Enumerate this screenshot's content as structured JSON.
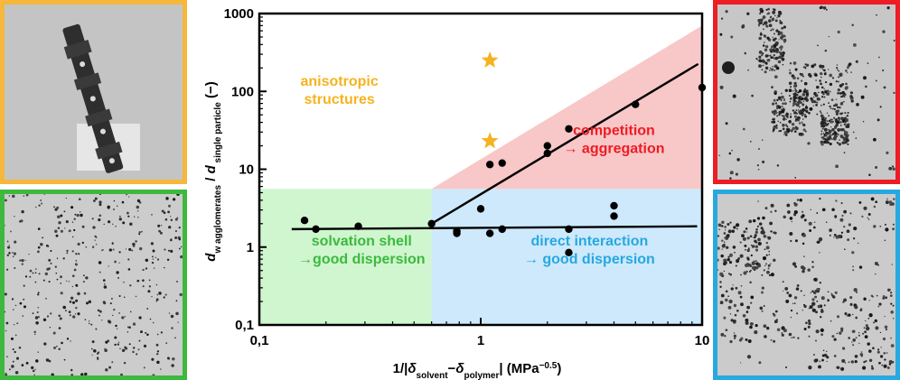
{
  "colors": {
    "region_green": "#CFF6CF",
    "region_blue": "#CDE9FB",
    "region_red": "#F8C7C8",
    "text_orange": "#F5B31E",
    "text_red": "#EE1C24",
    "text_green": "#3DB93D",
    "text_blue": "#27A8E0",
    "frame_orange": "#F5B73C",
    "frame_green": "#3DB93D",
    "frame_red": "#EE1C24",
    "frame_blue": "#27A8E0"
  },
  "photos": [
    {
      "name": "photo-anisotropic",
      "frame": "orange"
    },
    {
      "name": "photo-solvation-shell",
      "frame": "green"
    },
    {
      "name": "photo-aggregation",
      "frame": "red"
    },
    {
      "name": "photo-direct-interaction",
      "frame": "blue"
    }
  ],
  "chart_data": {
    "type": "scatter",
    "x_scale": "log",
    "y_scale": "log",
    "xlim": [
      0.1,
      10
    ],
    "ylim": [
      0.1,
      1000
    ],
    "x_ticks": [
      0.1,
      1,
      10
    ],
    "x_tick_labels": [
      "0,1",
      "1",
      "10"
    ],
    "y_ticks": [
      0.1,
      1,
      10,
      100,
      1000
    ],
    "y_tick_labels": [
      "0,1",
      "1",
      "10",
      "100",
      "1000"
    ],
    "xlabel_parts": [
      "1/|",
      "δ",
      "solvent",
      "−",
      "δ",
      "polymer",
      "|  (MPa",
      "−0.5",
      ")"
    ],
    "ylabel_parts": [
      "d",
      "w agglomerates",
      " / ",
      "d",
      " single particle",
      "  (−)"
    ],
    "series": [
      {
        "name": "agglomerates",
        "marker": "circle",
        "x": [
          0.16,
          0.18,
          0.28,
          0.6,
          0.78,
          0.78,
          1.0,
          1.1,
          1.1,
          1.25,
          1.25,
          2.0,
          2.0,
          2.5,
          2.5,
          2.5,
          4.0,
          4.0,
          5.0,
          10.0
        ],
        "y": [
          2.2,
          1.7,
          1.85,
          2.0,
          1.6,
          1.5,
          3.1,
          11.5,
          1.5,
          12.0,
          1.7,
          20.0,
          16.0,
          33.0,
          1.7,
          0.85,
          3.4,
          2.5,
          68.0,
          112.0
        ]
      },
      {
        "name": "anisotropic",
        "marker": "star",
        "x": [
          1.1,
          1.1
        ],
        "y": [
          250.0,
          23.0
        ]
      }
    ],
    "trend_lines": [
      {
        "name": "flat-trend",
        "x": [
          0.14,
          9.5
        ],
        "y": [
          1.7,
          1.85
        ]
      },
      {
        "name": "rising-trend",
        "x": [
          0.6,
          9.6
        ],
        "y": [
          2.0,
          225.0
        ]
      }
    ],
    "regions": [
      {
        "name": "solvation-region",
        "color": "green",
        "x": [
          0.1,
          0.6
        ],
        "y": [
          0.1,
          5.6
        ]
      },
      {
        "name": "direct-interaction-region",
        "color": "blue",
        "x": [
          0.6,
          10
        ],
        "y": [
          0.1,
          5.6
        ]
      },
      {
        "name": "aggregation-region",
        "color": "red",
        "polygon": [
          [
            0.6,
            5.6
          ],
          [
            10,
            5.6
          ],
          [
            10,
            700
          ]
        ]
      }
    ],
    "annotations": [
      {
        "name": "label-anisotropic",
        "lines": [
          "anisotropic",
          "structures"
        ],
        "color": "orange",
        "at": [
          0.23,
          90
        ]
      },
      {
        "name": "label-competition",
        "lines": [
          "competition",
          "→ aggregation"
        ],
        "color": "red",
        "at": [
          4.0,
          21
        ]
      },
      {
        "name": "label-solvation",
        "lines": [
          "solvation shell",
          "→good dispersion"
        ],
        "color": "green",
        "at": [
          0.29,
          0.8
        ]
      },
      {
        "name": "label-direct",
        "lines": [
          "direct interaction",
          "→ good dispersion"
        ],
        "color": "blue",
        "at": [
          3.1,
          0.8
        ]
      }
    ]
  }
}
